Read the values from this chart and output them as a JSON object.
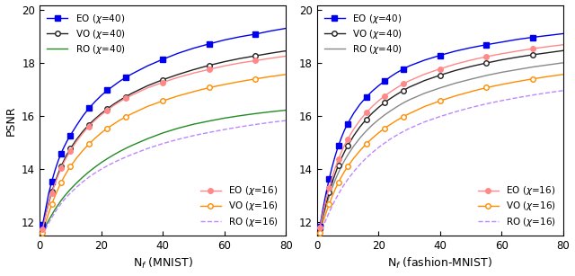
{
  "nf": [
    1,
    2,
    3,
    4,
    5,
    6,
    7,
    8,
    9,
    10,
    12,
    14,
    16,
    18,
    20,
    22,
    24,
    26,
    28,
    30,
    35,
    40,
    45,
    50,
    55,
    60,
    65,
    70,
    75,
    80
  ],
  "mnist_EO40": [
    11.9,
    12.5,
    13.1,
    13.55,
    13.95,
    14.3,
    14.6,
    14.85,
    15.08,
    15.28,
    15.65,
    16.0,
    16.3,
    16.55,
    16.78,
    16.98,
    17.15,
    17.32,
    17.47,
    17.6,
    17.9,
    18.15,
    18.38,
    18.57,
    18.73,
    18.88,
    19.0,
    19.1,
    19.22,
    19.32
  ],
  "mnist_VO40": [
    11.8,
    12.3,
    12.75,
    13.15,
    13.5,
    13.82,
    14.1,
    14.35,
    14.58,
    14.78,
    15.12,
    15.42,
    15.68,
    15.9,
    16.1,
    16.28,
    16.45,
    16.6,
    16.74,
    16.87,
    17.15,
    17.38,
    17.58,
    17.76,
    17.92,
    18.06,
    18.18,
    18.28,
    18.38,
    18.47
  ],
  "mnist_RO40": [
    11.6,
    11.85,
    12.08,
    12.28,
    12.48,
    12.65,
    12.82,
    12.97,
    13.11,
    13.24,
    13.48,
    13.7,
    13.9,
    14.08,
    14.25,
    14.4,
    14.54,
    14.67,
    14.79,
    14.9,
    15.15,
    15.37,
    15.55,
    15.7,
    15.82,
    15.93,
    16.02,
    16.1,
    16.17,
    16.23
  ],
  "mnist_EO16": [
    11.75,
    12.25,
    12.7,
    13.1,
    13.45,
    13.75,
    14.03,
    14.28,
    14.5,
    14.7,
    15.05,
    15.35,
    15.62,
    15.85,
    16.05,
    16.23,
    16.4,
    16.55,
    16.68,
    16.8,
    17.07,
    17.28,
    17.47,
    17.63,
    17.77,
    17.9,
    18.01,
    18.1,
    18.19,
    18.27
  ],
  "mnist_VO16": [
    11.6,
    12.0,
    12.35,
    12.68,
    12.98,
    13.25,
    13.5,
    13.72,
    13.92,
    14.1,
    14.42,
    14.7,
    14.95,
    15.17,
    15.37,
    15.55,
    15.7,
    15.85,
    15.98,
    16.1,
    16.37,
    16.58,
    16.77,
    16.93,
    17.08,
    17.2,
    17.31,
    17.41,
    17.5,
    17.58
  ],
  "mnist_RO16": [
    11.5,
    11.75,
    11.98,
    12.18,
    12.37,
    12.55,
    12.7,
    12.85,
    12.98,
    13.1,
    13.32,
    13.52,
    13.7,
    13.86,
    14.0,
    14.13,
    14.25,
    14.36,
    14.46,
    14.56,
    14.78,
    14.97,
    15.13,
    15.27,
    15.39,
    15.5,
    15.6,
    15.69,
    15.77,
    15.84
  ],
  "fmnist_EO40": [
    11.85,
    12.5,
    13.1,
    13.63,
    14.1,
    14.52,
    14.88,
    15.2,
    15.48,
    15.72,
    16.12,
    16.45,
    16.72,
    16.95,
    17.15,
    17.33,
    17.5,
    17.65,
    17.78,
    17.9,
    18.12,
    18.3,
    18.46,
    18.59,
    18.7,
    18.8,
    18.9,
    18.98,
    19.05,
    19.12
  ],
  "fmnist_VO40": [
    11.75,
    12.25,
    12.7,
    13.12,
    13.5,
    13.84,
    14.15,
    14.42,
    14.66,
    14.88,
    15.27,
    15.6,
    15.88,
    16.12,
    16.33,
    16.52,
    16.68,
    16.83,
    16.97,
    17.1,
    17.35,
    17.55,
    17.73,
    17.88,
    18.01,
    18.13,
    18.23,
    18.32,
    18.4,
    18.48
  ],
  "fmnist_RO40": [
    11.75,
    12.2,
    12.6,
    12.97,
    13.3,
    13.6,
    13.87,
    14.11,
    14.33,
    14.53,
    14.88,
    15.18,
    15.44,
    15.67,
    15.87,
    16.05,
    16.21,
    16.36,
    16.5,
    16.62,
    16.87,
    17.07,
    17.25,
    17.4,
    17.54,
    17.66,
    17.76,
    17.86,
    17.94,
    18.02
  ],
  "fmnist_EO16": [
    11.8,
    12.35,
    12.85,
    13.3,
    13.7,
    14.06,
    14.38,
    14.66,
    14.91,
    15.13,
    15.52,
    15.85,
    16.13,
    16.37,
    16.58,
    16.77,
    16.93,
    17.08,
    17.22,
    17.34,
    17.59,
    17.79,
    17.97,
    18.12,
    18.25,
    18.36,
    18.46,
    18.55,
    18.63,
    18.7
  ],
  "fmnist_VO16": [
    11.6,
    12.0,
    12.35,
    12.68,
    12.98,
    13.25,
    13.5,
    13.72,
    13.92,
    14.1,
    14.42,
    14.7,
    14.95,
    15.17,
    15.37,
    15.55,
    15.7,
    15.85,
    15.98,
    16.1,
    16.37,
    16.58,
    16.77,
    16.93,
    17.08,
    17.2,
    17.31,
    17.41,
    17.5,
    17.58
  ],
  "fmnist_RO16": [
    11.5,
    11.82,
    12.1,
    12.37,
    12.62,
    12.85,
    13.06,
    13.26,
    13.44,
    13.61,
    13.91,
    14.18,
    14.42,
    14.63,
    14.82,
    14.99,
    15.15,
    15.29,
    15.42,
    15.54,
    15.79,
    15.99,
    16.17,
    16.33,
    16.47,
    16.59,
    16.7,
    16.8,
    16.89,
    16.97
  ],
  "color_EO40": "#0000ee",
  "color_VO40": "#222222",
  "color_RO40_mnist": "#228B22",
  "color_RO40_fmnist": "#888888",
  "color_EO16": "#ff8888",
  "color_VO16": "#ff8c00",
  "color_RO16": "#bb88ff",
  "ylim_min": 11.5,
  "ylim_max": 20.2,
  "yticks": [
    12,
    14,
    16,
    18,
    20
  ],
  "xticks": [
    0,
    20,
    40,
    60,
    80
  ],
  "xlabel_mnist": "N$_f$ (MNIST)",
  "xlabel_fmnist": "N$_f$ (fashion-MNIST)",
  "ylabel": "PSNR",
  "markersize": 4,
  "linewidth": 1.0
}
